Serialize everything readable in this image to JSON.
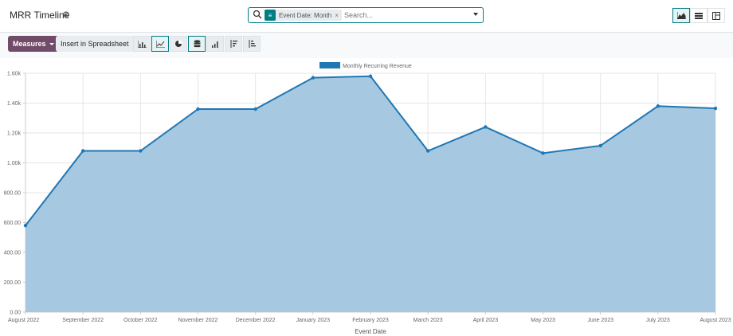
{
  "header": {
    "title": "MRR Timeline"
  },
  "search": {
    "facet_label": "Event Date: Month",
    "placeholder": "Search..."
  },
  "toolbar": {
    "measures_label": "Measures",
    "spreadsheet_label": "Insert in Spreadsheet"
  },
  "chart_data": {
    "type": "area",
    "legend": [
      "Monthly Recurring Revenue"
    ],
    "legend_position": "top",
    "xlabel": "Event Date",
    "ylabel": "",
    "categories": [
      "August 2022",
      "September 2022",
      "October 2022",
      "November 2022",
      "December 2022",
      "January 2023",
      "February 2023",
      "March 2023",
      "April 2023",
      "May 2023",
      "June 2023",
      "July 2023",
      "August 2023"
    ],
    "series": [
      {
        "name": "Monthly Recurring Revenue",
        "values": [
          580,
          1080,
          1080,
          1360,
          1360,
          1570,
          1580,
          1080,
          1240,
          1065,
          1115,
          1380,
          1365
        ]
      }
    ],
    "ylim": [
      0,
      1600
    ],
    "yticks": [
      "0.00",
      "200.00",
      "400.00",
      "600.00",
      "800.00",
      "1.00k",
      "1.20k",
      "1.40k",
      "1.60k"
    ],
    "grid": true,
    "colors": {
      "line": "#1f77b4",
      "fill": "#a6c8e0"
    }
  }
}
